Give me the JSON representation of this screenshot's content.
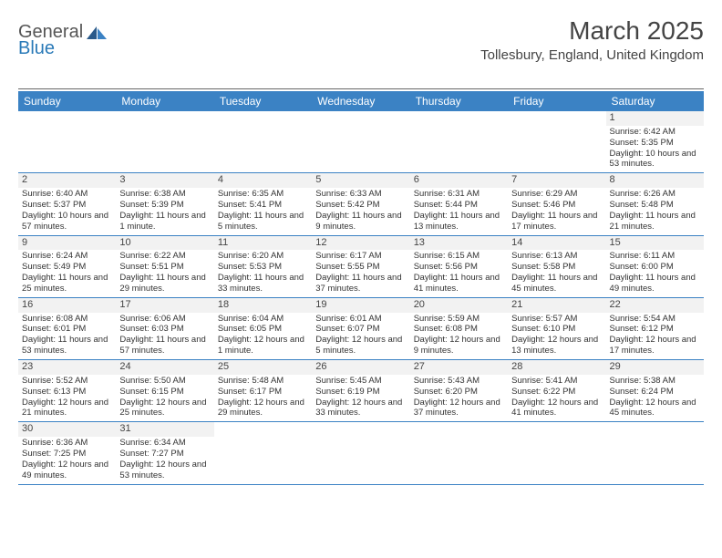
{
  "brand": {
    "prefix": "General",
    "suffix": "Blue"
  },
  "title": "March 2025",
  "location": "Tollesbury, England, United Kingdom",
  "colors": {
    "header_bg": "#3b82c4",
    "header_text": "#ffffff",
    "border": "#3b82c4",
    "daynum_bg": "#f2f2f2",
    "text": "#333333",
    "page_bg": "#ffffff",
    "logo_blue": "#2a7ab8",
    "logo_dark": "#2a5a8a"
  },
  "weekdays": [
    "Sunday",
    "Monday",
    "Tuesday",
    "Wednesday",
    "Thursday",
    "Friday",
    "Saturday"
  ],
  "weeks": [
    [
      {
        "n": "",
        "lines": []
      },
      {
        "n": "",
        "lines": []
      },
      {
        "n": "",
        "lines": []
      },
      {
        "n": "",
        "lines": []
      },
      {
        "n": "",
        "lines": []
      },
      {
        "n": "",
        "lines": []
      },
      {
        "n": "1",
        "lines": [
          "Sunrise: 6:42 AM",
          "Sunset: 5:35 PM",
          "Daylight: 10 hours and 53 minutes."
        ]
      }
    ],
    [
      {
        "n": "2",
        "lines": [
          "Sunrise: 6:40 AM",
          "Sunset: 5:37 PM",
          "Daylight: 10 hours and 57 minutes."
        ]
      },
      {
        "n": "3",
        "lines": [
          "Sunrise: 6:38 AM",
          "Sunset: 5:39 PM",
          "Daylight: 11 hours and 1 minute."
        ]
      },
      {
        "n": "4",
        "lines": [
          "Sunrise: 6:35 AM",
          "Sunset: 5:41 PM",
          "Daylight: 11 hours and 5 minutes."
        ]
      },
      {
        "n": "5",
        "lines": [
          "Sunrise: 6:33 AM",
          "Sunset: 5:42 PM",
          "Daylight: 11 hours and 9 minutes."
        ]
      },
      {
        "n": "6",
        "lines": [
          "Sunrise: 6:31 AM",
          "Sunset: 5:44 PM",
          "Daylight: 11 hours and 13 minutes."
        ]
      },
      {
        "n": "7",
        "lines": [
          "Sunrise: 6:29 AM",
          "Sunset: 5:46 PM",
          "Daylight: 11 hours and 17 minutes."
        ]
      },
      {
        "n": "8",
        "lines": [
          "Sunrise: 6:26 AM",
          "Sunset: 5:48 PM",
          "Daylight: 11 hours and 21 minutes."
        ]
      }
    ],
    [
      {
        "n": "9",
        "lines": [
          "Sunrise: 6:24 AM",
          "Sunset: 5:49 PM",
          "Daylight: 11 hours and 25 minutes."
        ]
      },
      {
        "n": "10",
        "lines": [
          "Sunrise: 6:22 AM",
          "Sunset: 5:51 PM",
          "Daylight: 11 hours and 29 minutes."
        ]
      },
      {
        "n": "11",
        "lines": [
          "Sunrise: 6:20 AM",
          "Sunset: 5:53 PM",
          "Daylight: 11 hours and 33 minutes."
        ]
      },
      {
        "n": "12",
        "lines": [
          "Sunrise: 6:17 AM",
          "Sunset: 5:55 PM",
          "Daylight: 11 hours and 37 minutes."
        ]
      },
      {
        "n": "13",
        "lines": [
          "Sunrise: 6:15 AM",
          "Sunset: 5:56 PM",
          "Daylight: 11 hours and 41 minutes."
        ]
      },
      {
        "n": "14",
        "lines": [
          "Sunrise: 6:13 AM",
          "Sunset: 5:58 PM",
          "Daylight: 11 hours and 45 minutes."
        ]
      },
      {
        "n": "15",
        "lines": [
          "Sunrise: 6:11 AM",
          "Sunset: 6:00 PM",
          "Daylight: 11 hours and 49 minutes."
        ]
      }
    ],
    [
      {
        "n": "16",
        "lines": [
          "Sunrise: 6:08 AM",
          "Sunset: 6:01 PM",
          "Daylight: 11 hours and 53 minutes."
        ]
      },
      {
        "n": "17",
        "lines": [
          "Sunrise: 6:06 AM",
          "Sunset: 6:03 PM",
          "Daylight: 11 hours and 57 minutes."
        ]
      },
      {
        "n": "18",
        "lines": [
          "Sunrise: 6:04 AM",
          "Sunset: 6:05 PM",
          "Daylight: 12 hours and 1 minute."
        ]
      },
      {
        "n": "19",
        "lines": [
          "Sunrise: 6:01 AM",
          "Sunset: 6:07 PM",
          "Daylight: 12 hours and 5 minutes."
        ]
      },
      {
        "n": "20",
        "lines": [
          "Sunrise: 5:59 AM",
          "Sunset: 6:08 PM",
          "Daylight: 12 hours and 9 minutes."
        ]
      },
      {
        "n": "21",
        "lines": [
          "Sunrise: 5:57 AM",
          "Sunset: 6:10 PM",
          "Daylight: 12 hours and 13 minutes."
        ]
      },
      {
        "n": "22",
        "lines": [
          "Sunrise: 5:54 AM",
          "Sunset: 6:12 PM",
          "Daylight: 12 hours and 17 minutes."
        ]
      }
    ],
    [
      {
        "n": "23",
        "lines": [
          "Sunrise: 5:52 AM",
          "Sunset: 6:13 PM",
          "Daylight: 12 hours and 21 minutes."
        ]
      },
      {
        "n": "24",
        "lines": [
          "Sunrise: 5:50 AM",
          "Sunset: 6:15 PM",
          "Daylight: 12 hours and 25 minutes."
        ]
      },
      {
        "n": "25",
        "lines": [
          "Sunrise: 5:48 AM",
          "Sunset: 6:17 PM",
          "Daylight: 12 hours and 29 minutes."
        ]
      },
      {
        "n": "26",
        "lines": [
          "Sunrise: 5:45 AM",
          "Sunset: 6:19 PM",
          "Daylight: 12 hours and 33 minutes."
        ]
      },
      {
        "n": "27",
        "lines": [
          "Sunrise: 5:43 AM",
          "Sunset: 6:20 PM",
          "Daylight: 12 hours and 37 minutes."
        ]
      },
      {
        "n": "28",
        "lines": [
          "Sunrise: 5:41 AM",
          "Sunset: 6:22 PM",
          "Daylight: 12 hours and 41 minutes."
        ]
      },
      {
        "n": "29",
        "lines": [
          "Sunrise: 5:38 AM",
          "Sunset: 6:24 PM",
          "Daylight: 12 hours and 45 minutes."
        ]
      }
    ],
    [
      {
        "n": "30",
        "lines": [
          "Sunrise: 6:36 AM",
          "Sunset: 7:25 PM",
          "Daylight: 12 hours and 49 minutes."
        ]
      },
      {
        "n": "31",
        "lines": [
          "Sunrise: 6:34 AM",
          "Sunset: 7:27 PM",
          "Daylight: 12 hours and 53 minutes."
        ]
      },
      {
        "n": "",
        "lines": []
      },
      {
        "n": "",
        "lines": []
      },
      {
        "n": "",
        "lines": []
      },
      {
        "n": "",
        "lines": []
      },
      {
        "n": "",
        "lines": []
      }
    ]
  ]
}
